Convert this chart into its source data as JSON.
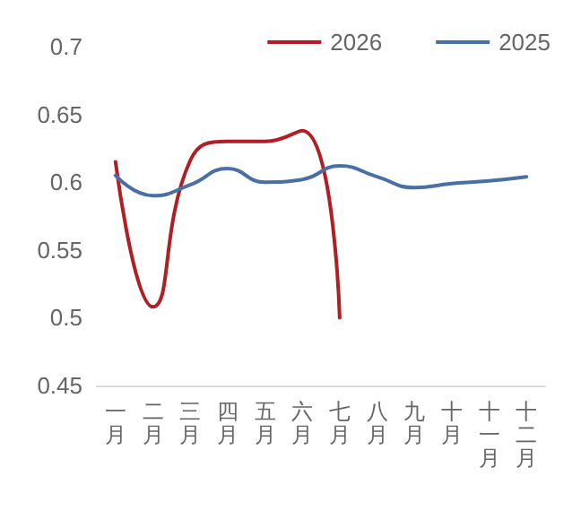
{
  "chart_data": {
    "type": "line",
    "categories": [
      "一月",
      "二月",
      "三月",
      "四月",
      "五月",
      "六月",
      "七月",
      "八月",
      "九月",
      "十月",
      "十一月",
      "十二月"
    ],
    "series": [
      {
        "name": "2026",
        "color": "#b01f24",
        "values": [
          0.615,
          0.508,
          0.616,
          0.63,
          0.63,
          0.638,
          0.5,
          null,
          null,
          null,
          null,
          null
        ]
      },
      {
        "name": "2025",
        "color": "#4a6fa5",
        "values": [
          0.605,
          0.59,
          0.598,
          0.61,
          0.6,
          0.602,
          0.612,
          0.604,
          0.596,
          0.599,
          0.601,
          0.604
        ]
      }
    ],
    "ylim": [
      0.45,
      0.7
    ],
    "yticks": [
      0.45,
      0.5,
      0.55,
      0.6,
      0.65,
      0.7
    ],
    "grid": false,
    "legend": "top right",
    "marker": "none",
    "line_style": "solid"
  }
}
